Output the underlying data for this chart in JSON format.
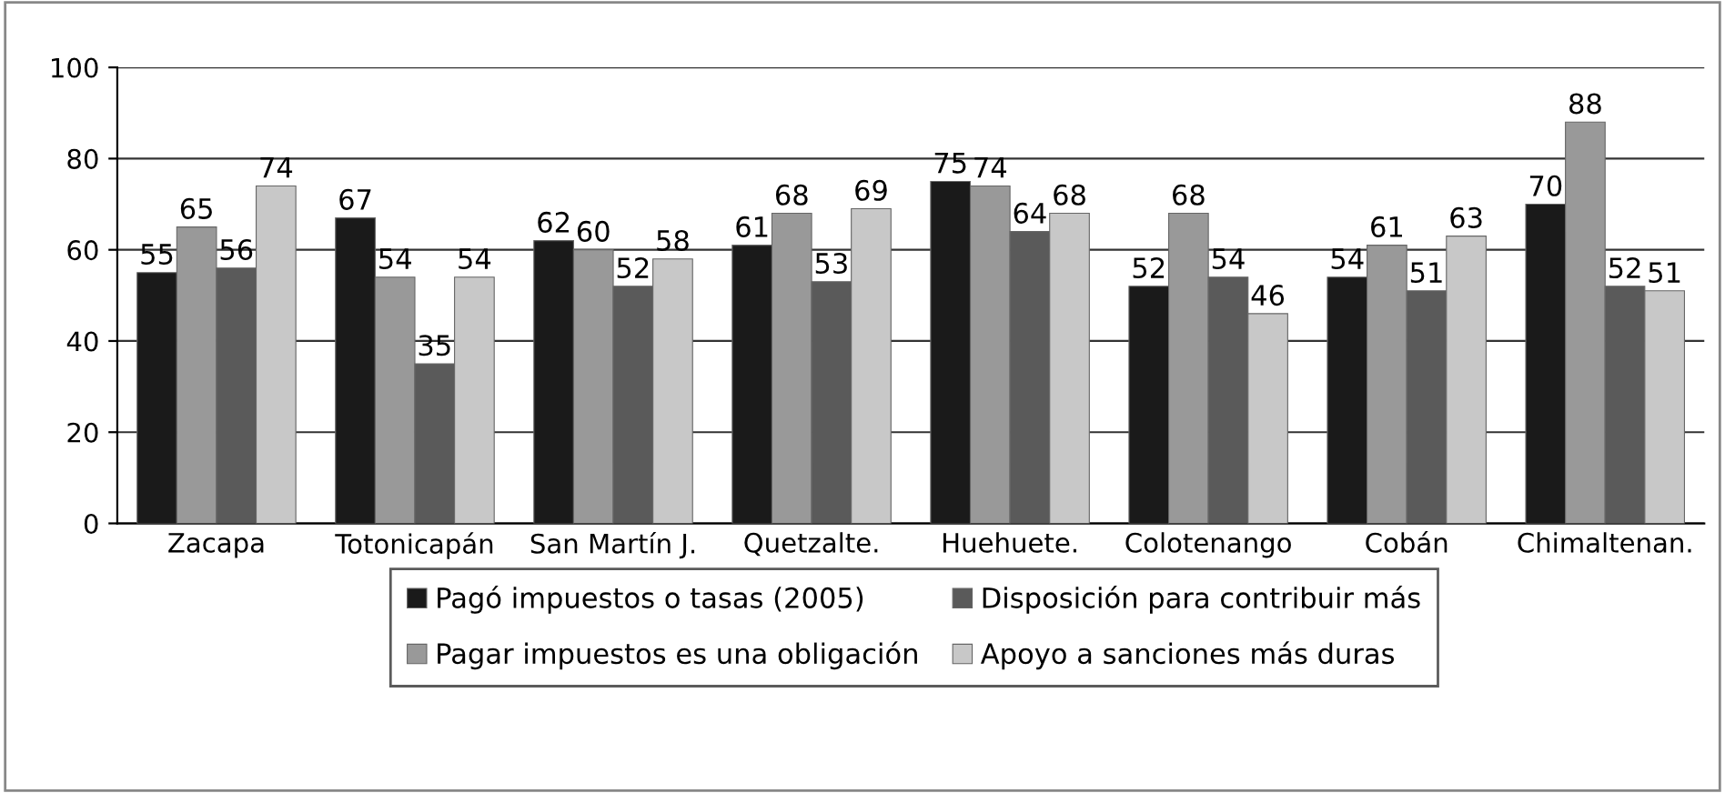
{
  "chart_data": {
    "type": "bar",
    "categories": [
      "Zacapa",
      "Totonicapán",
      "San Martín J.",
      "Quetzalte.",
      "Huehuete.",
      "Colotenango",
      "Cobán",
      "Chimaltenan."
    ],
    "series": [
      {
        "name": "Pagó impuestos o tasas (2005)",
        "color": "#1a1a1a",
        "values": [
          55,
          67,
          62,
          61,
          75,
          52,
          54,
          70
        ]
      },
      {
        "name": "Pagar impuestos es una obligación",
        "color": "#999999",
        "values": [
          65,
          54,
          60,
          68,
          74,
          68,
          61,
          88
        ]
      },
      {
        "name": "Disposición para contribuir más",
        "color": "#5a5a5a",
        "values": [
          56,
          35,
          52,
          53,
          64,
          54,
          51,
          52
        ]
      },
      {
        "name": "Apoyo a sanciones más duras",
        "color": "#c8c8c8",
        "values": [
          74,
          54,
          58,
          69,
          68,
          46,
          63,
          51
        ]
      }
    ],
    "ylim": [
      0,
      100
    ],
    "yticks": [
      0,
      20,
      40,
      60,
      80,
      100
    ],
    "grid": "y",
    "legend": "bottom",
    "data_labels": true
  }
}
